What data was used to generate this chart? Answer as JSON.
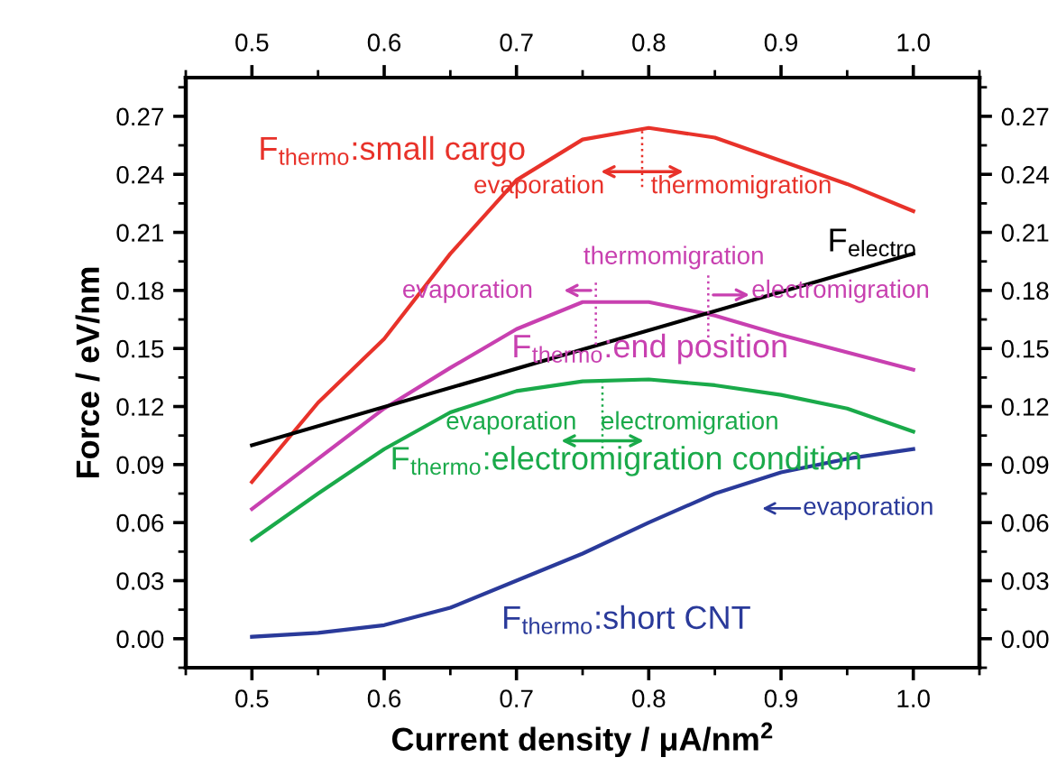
{
  "chart_data": {
    "type": "line",
    "xlabel": "Current density / μA/nm$^{2}$",
    "ylabel": "Force / eV/nm",
    "xlim": [
      0.45,
      1.05
    ],
    "xticks": [
      0.5,
      0.6,
      0.7,
      0.8,
      0.9,
      {
        "value": 1.0,
        "label": "1.0"
      }
    ],
    "x2lim": [
      0.45,
      1.05
    ],
    "x2ticks": [
      0.5,
      0.6,
      0.7,
      0.8,
      0.9,
      {
        "value": 1.0,
        "label": "1.0"
      }
    ],
    "ylim": [
      -0.015,
      0.29
    ],
    "yticks": [
      {
        "value": 0.0,
        "label": "0.00"
      },
      0.03,
      0.06,
      0.09,
      0.12,
      0.15,
      0.18,
      0.21,
      0.24,
      0.27
    ],
    "y2lim": [
      -0.015,
      0.29
    ],
    "y2ticks": [
      {
        "value": 0.0,
        "label": "0.00"
      },
      0.03,
      0.06,
      0.09,
      0.12,
      0.15,
      0.18,
      0.21,
      0.24,
      0.27
    ],
    "grid": false,
    "marker": "none",
    "line_style": "solid",
    "x": [
      0.5,
      0.55,
      0.6,
      0.65,
      0.7,
      0.75,
      0.8,
      0.85,
      0.9,
      0.95,
      1.0
    ],
    "series": [
      {
        "color": "#e8322a",
        "values": [
          0.081,
          0.122,
          0.155,
          0.199,
          0.237,
          0.258,
          0.264,
          0.259,
          0.247,
          0.235,
          0.221
        ]
      },
      {
        "color": "#c840b0",
        "values": [
          0.067,
          0.093,
          0.119,
          0.14,
          0.16,
          0.174,
          0.174,
          0.167,
          0.157,
          0.148,
          0.139
        ]
      },
      {
        "color": "#1aaa4a",
        "values": [
          0.051,
          0.075,
          0.098,
          0.117,
          0.128,
          0.133,
          0.134,
          0.131,
          0.126,
          0.119,
          0.107
        ]
      },
      {
        "color": "#2a3a9a",
        "values": [
          0.001,
          0.003,
          0.007,
          0.016,
          0.03,
          0.044,
          0.06,
          0.075,
          0.086,
          0.093,
          0.098
        ]
      },
      {
        "color": "#000000",
        "x": [
          0.5,
          1.0
        ],
        "values": [
          0.1,
          0.199
        ]
      }
    ],
    "ref_lines": [
      {
        "axis": "x",
        "value": 0.795,
        "color": "#e8322a",
        "line_style": "dotted"
      },
      {
        "axis": "x",
        "value": 0.76,
        "color": "#c840b0",
        "line_style": "dotted"
      },
      {
        "axis": "x",
        "value": 0.845,
        "color": "#c840b0",
        "line_style": "dotted"
      },
      {
        "axis": "x",
        "value": 0.765,
        "color": "#1aaa4a",
        "line_style": "dotted"
      }
    ],
    "annotations": [
      "F$_{thermo}$:small cargo",
      "evaporation",
      "thermomigration",
      "F$_{electro}$",
      "thermomigration",
      "evaporation",
      "electromigration",
      "F$_{thermo}$:end position",
      "evaporation",
      "electromigration",
      "F$_{thermo}$:electromigration condition",
      "evaporation",
      "F$_{thermo}$:short CNT"
    ]
  }
}
